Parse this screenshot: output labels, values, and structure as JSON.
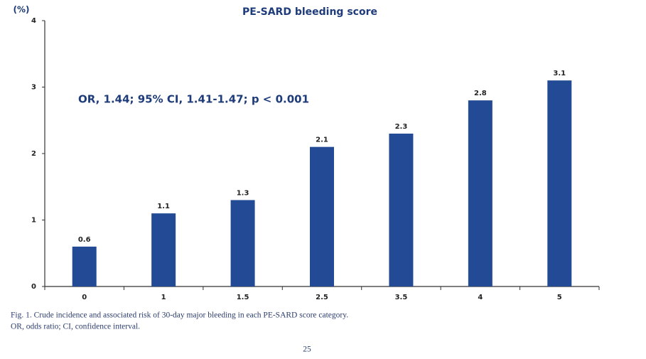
{
  "chart_data": {
    "type": "bar",
    "title": "PE-SARD bleeding score",
    "y_unit": "(%)",
    "annotation": "OR, 1.44; 95% CI, 1.41-1.47; p < 0.001",
    "categories": [
      "0",
      "1",
      "1.5",
      "2.5",
      "3.5",
      "4",
      "5"
    ],
    "values": [
      0.6,
      1.1,
      1.3,
      2.1,
      2.3,
      2.8,
      3.1
    ],
    "color": "#234a94",
    "ylim": [
      0,
      4
    ],
    "yticks": [
      0,
      1,
      2,
      3,
      4
    ],
    "grid": false
  },
  "caption": [
    "Fig. 1.  Crude incidence and associated risk of 30-day major bleeding in each PE-SARD score category.",
    "OR, odds ratio; CI, confidence interval."
  ],
  "page_number": "25"
}
